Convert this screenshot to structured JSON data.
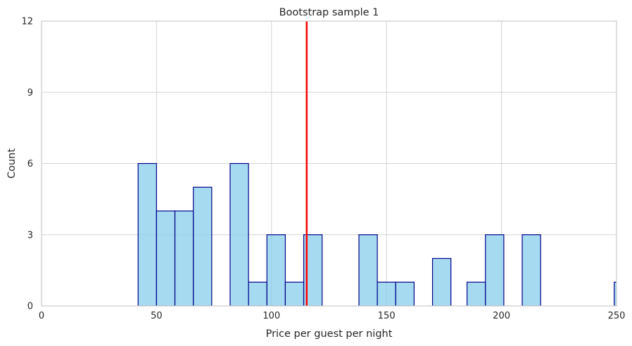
{
  "chart_data": {
    "type": "bar",
    "title": "Bootstrap sample 1",
    "xlabel": "Price per guest per night",
    "ylabel": "Count",
    "xlim": [
      0,
      250
    ],
    "ylim": [
      0,
      12
    ],
    "xticks": [
      0,
      50,
      100,
      150,
      200,
      250
    ],
    "yticks": [
      0,
      3,
      6,
      9,
      12
    ],
    "grid": true,
    "bin_width": 8,
    "bins": [
      {
        "x0": 42,
        "x1": 50,
        "count": 6
      },
      {
        "x0": 50,
        "x1": 58,
        "count": 4
      },
      {
        "x0": 58,
        "x1": 66,
        "count": 4
      },
      {
        "x0": 66,
        "x1": 74,
        "count": 5
      },
      {
        "x0": 82,
        "x1": 90,
        "count": 6
      },
      {
        "x0": 90,
        "x1": 98,
        "count": 1
      },
      {
        "x0": 98,
        "x1": 106,
        "count": 3
      },
      {
        "x0": 106,
        "x1": 114,
        "count": 1
      },
      {
        "x0": 114,
        "x1": 122,
        "count": 3
      },
      {
        "x0": 138,
        "x1": 146,
        "count": 3
      },
      {
        "x0": 146,
        "x1": 154,
        "count": 1
      },
      {
        "x0": 154,
        "x1": 162,
        "count": 1
      },
      {
        "x0": 170,
        "x1": 178,
        "count": 2
      },
      {
        "x0": 185,
        "x1": 193,
        "count": 1
      },
      {
        "x0": 193,
        "x1": 201,
        "count": 3
      },
      {
        "x0": 209,
        "x1": 217,
        "count": 3
      },
      {
        "x0": 249,
        "x1": 257,
        "count": 1
      }
    ],
    "reference_line": {
      "x": 115.3,
      "color": "#FF0000"
    },
    "colors": {
      "bar_fill": "#87CEEB",
      "bar_edge": "#00008B",
      "grid": "#d3d3d3"
    }
  }
}
